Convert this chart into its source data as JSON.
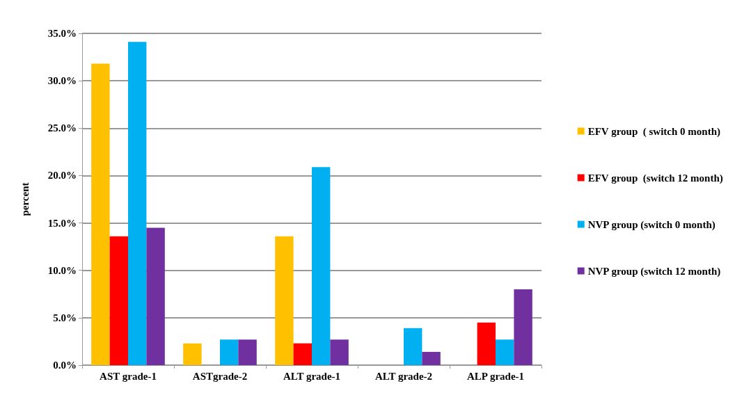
{
  "chart_data": {
    "type": "bar",
    "ylabel": "percent",
    "categories": [
      "AST grade-1",
      "ASTgrade-2",
      "ALT grade-1",
      "ALT grade-2",
      "ALP grade-1"
    ],
    "series": [
      {
        "name": "EFV group  ( switch 0 month)",
        "color": "#ffc000",
        "values": [
          31.8,
          2.3,
          13.6,
          0,
          0
        ]
      },
      {
        "name": "EFV group  (switch 12 month)",
        "color": "#ff0000",
        "values": [
          13.6,
          0,
          2.3,
          0,
          4.5
        ]
      },
      {
        "name": "NVP group (switch 0 month)",
        "color": "#00b0f0",
        "values": [
          34.1,
          2.7,
          20.9,
          3.9,
          2.7
        ]
      },
      {
        "name": "NVP group (switch 12 month)",
        "color": "#7030a0",
        "values": [
          14.5,
          2.7,
          2.7,
          1.4,
          8.0
        ]
      }
    ],
    "ylim": [
      0,
      35
    ],
    "yticks": [
      {
        "value": 0,
        "label": "0.0%"
      },
      {
        "value": 5,
        "label": "5.0%"
      },
      {
        "value": 10,
        "label": "10.0%"
      },
      {
        "value": 15,
        "label": "15.0%"
      },
      {
        "value": 20,
        "label": "20.0%"
      },
      {
        "value": 25,
        "label": "25.0%"
      },
      {
        "value": 30,
        "label": "30.0%"
      },
      {
        "value": 35,
        "label": "35.0%"
      }
    ],
    "grid": "y",
    "legend": "right"
  }
}
